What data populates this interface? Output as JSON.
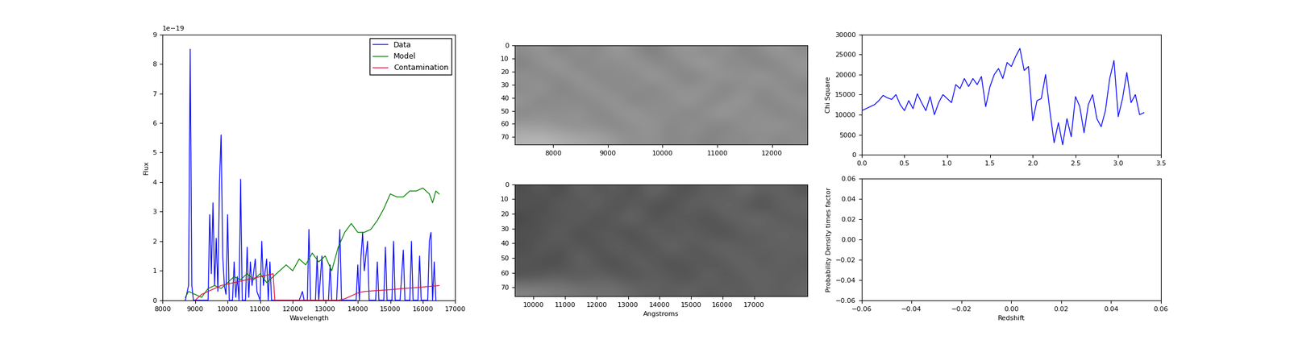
{
  "chart_data": [
    {
      "type": "line",
      "xlabel": "Wavelength",
      "ylabel": "Flux",
      "annotation": "1e−19",
      "xlim": [
        8000,
        17000
      ],
      "xticks": [
        8000,
        9000,
        10000,
        11000,
        12000,
        13000,
        14000,
        15000,
        16000,
        17000
      ],
      "ylim": [
        0,
        9e-19
      ],
      "yticks": [
        {
          "value": 0,
          "label": "0"
        },
        {
          "value": 1e-19,
          "label": "1"
        },
        {
          "value": 2e-19,
          "label": "2"
        },
        {
          "value": 3e-19,
          "label": "3"
        },
        {
          "value": 4e-19,
          "label": "4"
        },
        {
          "value": 5e-19,
          "label": "5"
        },
        {
          "value": 6e-19,
          "label": "6"
        },
        {
          "value": 7e-19,
          "label": "7"
        },
        {
          "value": 8e-19,
          "label": "8"
        },
        {
          "value": 9e-19,
          "label": "9"
        }
      ],
      "legend": "upper right",
      "series": [
        {
          "name": "Data",
          "color": "#0000ff",
          "x": [
            8700,
            8800,
            8850,
            8900,
            8950,
            9000,
            9400,
            9450,
            9500,
            9550,
            9600,
            9650,
            9700,
            9750,
            9800,
            9850,
            9900,
            9950,
            10000,
            10050,
            10150,
            10200,
            10250,
            10300,
            10350,
            10400,
            10450,
            10550,
            10600,
            10650,
            10700,
            10750,
            10850,
            10900,
            11000,
            11050,
            11100,
            11200,
            11250,
            11300,
            11350,
            11400,
            12200,
            12300,
            12350,
            12450,
            12500,
            12550,
            12700,
            12750,
            12800,
            12900,
            12950,
            13100,
            13150,
            13200,
            13350,
            13450,
            13500,
            13950,
            14000,
            14050,
            14100,
            14150,
            14200,
            14300,
            14350,
            14550,
            14600,
            14650,
            14800,
            14850,
            14900,
            15050,
            15100,
            15150,
            15300,
            15400,
            15450,
            15600,
            15650,
            15700,
            15850,
            15900,
            15950,
            16150,
            16200,
            16250,
            16300,
            16350,
            16400
          ],
          "values": [
            0,
            5e-20,
            8.5e-19,
            5e-20,
            0,
            0,
            0,
            2.9e-19,
            9e-20,
            3.3e-19,
            5e-20,
            2.1e-19,
            3e-20,
            4e-19,
            5.6e-19,
            1.5e-19,
            5e-20,
            2e-20,
            2.9e-19,
            0,
            0,
            1.3e-19,
            1e-20,
            8e-20,
            0,
            4.1e-19,
            0,
            0,
            1.8e-19,
            1e-20,
            1.3e-19,
            5e-20,
            1.4e-19,
            3e-20,
            0,
            2e-19,
            5e-20,
            1.4e-19,
            0,
            1.3e-19,
            0,
            0,
            0,
            3e-20,
            0,
            0,
            2.4e-19,
            0,
            0,
            1.5e-19,
            0,
            1.5e-19,
            0,
            0,
            1.2e-19,
            0,
            0,
            2.4e-19,
            0,
            0,
            1.2e-19,
            0,
            1.5e-19,
            2.3e-19,
            1e-19,
            2e-19,
            0,
            0,
            1.3e-19,
            0,
            0,
            1.8e-19,
            0,
            0,
            2e-19,
            0,
            0,
            1.7e-19,
            0,
            0,
            2e-19,
            0,
            0,
            1.5e-19,
            0,
            0,
            2e-19,
            2.3e-19,
            0,
            1.3e-19,
            0
          ]
        },
        {
          "name": "Model",
          "color": "#008000",
          "x": [
            8700,
            8800,
            9000,
            9200,
            9400,
            9600,
            9800,
            10000,
            10200,
            10400,
            10600,
            10800,
            11000,
            11200,
            11400,
            11600,
            11800,
            12000,
            12200,
            12400,
            12600,
            12800,
            13000,
            13200,
            13400,
            13600,
            13800,
            14000,
            14200,
            14400,
            14600,
            14800,
            15000,
            15200,
            15400,
            15600,
            15800,
            16000,
            16200,
            16300,
            16400,
            16500
          ],
          "values": [
            1e-20,
            3e-20,
            2e-20,
            1e-20,
            4e-20,
            5e-20,
            4e-20,
            6e-20,
            8e-20,
            7e-20,
            9e-20,
            7e-20,
            9e-20,
            6e-20,
            8e-20,
            1e-19,
            1.2e-19,
            1e-19,
            1.4e-19,
            1.2e-19,
            1.6e-19,
            1.3e-19,
            1.5e-19,
            1e-19,
            1.8e-19,
            2.3e-19,
            2.6e-19,
            2.3e-19,
            2.3e-19,
            2.4e-19,
            2.7e-19,
            3.1e-19,
            3.6e-19,
            3.5e-19,
            3.5e-19,
            3.7e-19,
            3.7e-19,
            3.8e-19,
            3.6e-19,
            3.3e-19,
            3.7e-19,
            3.6e-19
          ]
        },
        {
          "name": "Contamination",
          "color": "#dc143c",
          "x": [
            9000,
            9200,
            9400,
            9600,
            9800,
            10000,
            10200,
            10400,
            10600,
            10800,
            11000,
            11200,
            11400,
            11450,
            12000,
            13000,
            13400,
            13600,
            13800,
            14000,
            14200,
            14600,
            15000,
            15400,
            15800,
            16200,
            16500
          ],
          "values": [
            0,
            2e-20,
            3e-20,
            4e-20,
            5e-20,
            5.5e-20,
            6e-20,
            6.5e-20,
            7e-20,
            7.5e-20,
            8e-20,
            8.5e-20,
            9e-20,
            0,
            0,
            0,
            0,
            5e-21,
            1.5e-20,
            2.5e-20,
            3e-20,
            3.3e-20,
            3.6e-20,
            4e-20,
            4.3e-20,
            4.7e-20,
            5e-20
          ]
        }
      ]
    },
    {
      "type": "heatmap",
      "xlim": [
        7300,
        12650
      ],
      "ylim": [
        76,
        0
      ],
      "clim": [
        0,
        1
      ],
      "xticks": [
        8000,
        9000,
        10000,
        11000,
        12000
      ],
      "yticks": [
        0,
        10,
        20,
        30,
        40,
        50,
        60,
        70
      ],
      "cells": [
        [
          0.55,
          0.6,
          0.5,
          0.58,
          0.52,
          0.62,
          0.55,
          0.48,
          0.57,
          0.6,
          0.53,
          0.59,
          0.5,
          0.56,
          0.61,
          0.54
        ],
        [
          0.5,
          0.57,
          0.62,
          0.49,
          0.58,
          0.53,
          0.6,
          0.55,
          0.51,
          0.58,
          0.63,
          0.52,
          0.57,
          0.49,
          0.55,
          0.6
        ],
        [
          0.58,
          0.52,
          0.55,
          0.61,
          0.5,
          0.57,
          0.52,
          0.62,
          0.56,
          0.5,
          0.55,
          0.6,
          0.54,
          0.62,
          0.52,
          0.57
        ],
        [
          0.53,
          0.61,
          0.49,
          0.56,
          0.6,
          0.51,
          0.58,
          0.5,
          0.59,
          0.55,
          0.6,
          0.49,
          0.58,
          0.53,
          0.59,
          0.51
        ],
        [
          0.6,
          0.5,
          0.57,
          0.52,
          0.55,
          0.61,
          0.49,
          0.57,
          0.53,
          0.62,
          0.51,
          0.56,
          0.61,
          0.5,
          0.56,
          0.58
        ],
        [
          0.52,
          0.58,
          0.54,
          0.6,
          0.51,
          0.56,
          0.62,
          0.53,
          0.58,
          0.5,
          0.57,
          0.62,
          0.52,
          0.59,
          0.5,
          0.55
        ],
        [
          0.62,
          0.6,
          0.58,
          0.55,
          0.57,
          0.52,
          0.56,
          0.6,
          0.51,
          0.57,
          0.54,
          0.5,
          0.58,
          0.55,
          0.6,
          0.53
        ],
        [
          0.7,
          0.72,
          0.68,
          0.66,
          0.64,
          0.6,
          0.55,
          0.58,
          0.52,
          0.56,
          0.5,
          0.55,
          0.53,
          0.57,
          0.52,
          0.56
        ]
      ]
    },
    {
      "type": "heatmap",
      "xlabel": "Angstroms",
      "xlim": [
        9400,
        18700
      ],
      "ylim": [
        76,
        0
      ],
      "clim": [
        0,
        1
      ],
      "xticks": [
        10000,
        11000,
        12000,
        13000,
        14000,
        15000,
        16000,
        17000
      ],
      "yticks": [
        0,
        10,
        20,
        30,
        40,
        50,
        60,
        70
      ],
      "cells": [
        [
          0.3,
          0.36,
          0.28,
          0.4,
          0.33,
          0.38,
          0.3,
          0.42,
          0.35,
          0.31,
          0.39,
          0.34,
          0.44,
          0.36,
          0.4,
          0.33
        ],
        [
          0.34,
          0.28,
          0.38,
          0.32,
          0.41,
          0.3,
          0.37,
          0.33,
          0.29,
          0.4,
          0.36,
          0.42,
          0.35,
          0.3,
          0.38,
          0.41
        ],
        [
          0.27,
          0.35,
          0.31,
          0.39,
          0.29,
          0.36,
          0.42,
          0.3,
          0.38,
          0.34,
          0.31,
          0.37,
          0.4,
          0.43,
          0.34,
          0.36
        ],
        [
          0.33,
          0.3,
          0.4,
          0.28,
          0.37,
          0.33,
          0.29,
          0.41,
          0.32,
          0.39,
          0.35,
          0.3,
          0.38,
          0.35,
          0.42,
          0.37
        ],
        [
          0.29,
          0.37,
          0.32,
          0.36,
          0.3,
          0.4,
          0.34,
          0.31,
          0.43,
          0.33,
          0.38,
          0.41,
          0.34,
          0.39,
          0.36,
          0.4
        ],
        [
          0.35,
          0.31,
          0.29,
          0.41,
          0.34,
          0.29,
          0.39,
          0.36,
          0.3,
          0.37,
          0.32,
          0.36,
          0.42,
          0.33,
          0.4,
          0.35
        ],
        [
          0.3,
          0.34,
          0.37,
          0.33,
          0.38,
          0.35,
          0.31,
          0.38,
          0.35,
          0.3,
          0.41,
          0.33,
          0.37,
          0.41,
          0.35,
          0.38
        ],
        [
          0.52,
          0.5,
          0.48,
          0.46,
          0.44,
          0.45,
          0.4,
          0.38,
          0.36,
          0.4,
          0.34,
          0.38,
          0.35,
          0.39,
          0.36,
          0.4
        ]
      ]
    },
    {
      "type": "line",
      "ylabel": "Chi Square",
      "xlim": [
        0,
        3.5
      ],
      "xticks": [
        {
          "value": 0,
          "label": "0.0"
        },
        0.5,
        {
          "value": 1,
          "label": "1.0"
        },
        1.5,
        {
          "value": 2,
          "label": "2.0"
        },
        2.5,
        {
          "value": 3,
          "label": "3.0"
        },
        3.5
      ],
      "ylim": [
        0,
        30000
      ],
      "yticks": [
        0,
        5000,
        10000,
        15000,
        20000,
        25000,
        30000
      ],
      "series": [
        {
          "color": "#0000ff",
          "x": [
            0,
            0.05,
            0.1,
            0.15,
            0.2,
            0.25,
            0.3,
            0.35,
            0.4,
            0.45,
            0.5,
            0.55,
            0.6,
            0.65,
            0.7,
            0.75,
            0.8,
            0.85,
            0.9,
            0.95,
            1.0,
            1.05,
            1.1,
            1.15,
            1.2,
            1.25,
            1.3,
            1.35,
            1.4,
            1.45,
            1.5,
            1.55,
            1.6,
            1.65,
            1.7,
            1.75,
            1.8,
            1.85,
            1.9,
            1.95,
            2.0,
            2.05,
            2.1,
            2.15,
            2.2,
            2.25,
            2.3,
            2.35,
            2.4,
            2.45,
            2.5,
            2.55,
            2.6,
            2.65,
            2.7,
            2.75,
            2.8,
            2.85,
            2.9,
            2.95,
            3.0,
            3.05,
            3.1,
            3.15,
            3.2,
            3.25,
            3.3
          ],
          "values": [
            11000,
            11500,
            12000,
            12500,
            13500,
            14800,
            14200,
            13800,
            15000,
            12500,
            11000,
            13500,
            11500,
            15200,
            13000,
            11000,
            14500,
            10000,
            13000,
            15000,
            14000,
            13000,
            17500,
            16500,
            19000,
            17000,
            19000,
            17500,
            19500,
            12000,
            17000,
            20000,
            21500,
            19000,
            23000,
            22000,
            24500,
            26500,
            21000,
            22000,
            8500,
            13500,
            14000,
            20000,
            11000,
            3000,
            8000,
            2500,
            9000,
            4500,
            14500,
            12000,
            5500,
            12500,
            15000,
            9000,
            7000,
            11000,
            19000,
            23500,
            9500,
            14000,
            20500,
            13000,
            15000,
            10000,
            10500
          ]
        }
      ]
    },
    {
      "type": "line",
      "xlabel": "Redshift",
      "ylabel": "Probability Density times factor",
      "xlim": [
        -0.06,
        0.06
      ],
      "xticks": [
        {
          "value": -0.06,
          "label": "−0.06"
        },
        {
          "value": -0.04,
          "label": "−0.04"
        },
        {
          "value": -0.02,
          "label": "−0.02"
        },
        {
          "value": 0,
          "label": "0.00"
        },
        {
          "value": 0.02,
          "label": "0.02"
        },
        {
          "value": 0.04,
          "label": "0.04"
        },
        {
          "value": 0.06,
          "label": "0.06"
        }
      ],
      "ylim": [
        -0.06,
        0.06
      ],
      "yticks": [
        {
          "value": -0.06,
          "label": "−0.06"
        },
        {
          "value": -0.04,
          "label": "−0.04"
        },
        {
          "value": -0.02,
          "label": "−0.02"
        },
        {
          "value": 0,
          "label": "0.00"
        },
        {
          "value": 0.02,
          "label": "0.02"
        },
        {
          "value": 0.04,
          "label": "0.04"
        },
        {
          "value": 0.06,
          "label": "0.06"
        }
      ],
      "series": []
    }
  ]
}
